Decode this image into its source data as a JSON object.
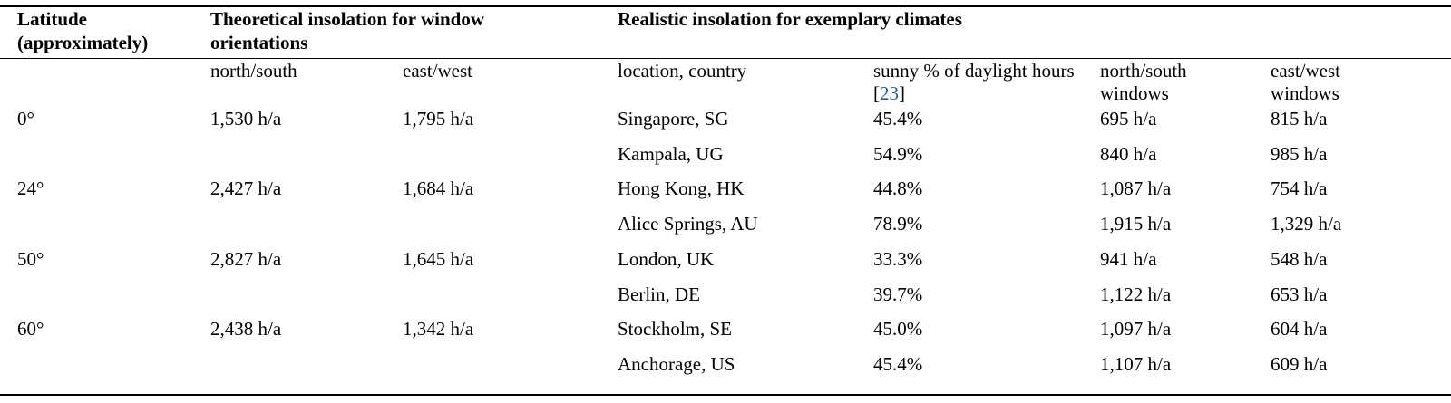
{
  "header": {
    "latitude": [
      "Latitude",
      "(approximately)"
    ],
    "theoretical": [
      "Theoretical insolation for window",
      "orientations"
    ],
    "realistic": "Realistic insolation for exemplary climates"
  },
  "subheader": {
    "north_south": "north/south",
    "east_west": "east/west",
    "location": "location, country",
    "sunny_pct": "sunny % of daylight hours",
    "sunny_pct_citation": "23",
    "ns_windows": [
      "north/south",
      "windows"
    ],
    "ew_windows": [
      "east/west",
      "windows"
    ]
  },
  "rows": [
    {
      "latitude": "0°",
      "theo_ns": "1,530 h/a",
      "theo_ew": "1,795 h/a",
      "location": "Singapore, SG",
      "sunny": "45.4%",
      "real_ns": "695 h/a",
      "real_ew": "815 h/a"
    },
    {
      "latitude": "",
      "theo_ns": "",
      "theo_ew": "",
      "location": "Kampala, UG",
      "sunny": "54.9%",
      "real_ns": "840 h/a",
      "real_ew": "985 h/a"
    },
    {
      "latitude": "24°",
      "theo_ns": "2,427 h/a",
      "theo_ew": "1,684 h/a",
      "location": "Hong Kong, HK",
      "sunny": "44.8%",
      "real_ns": "1,087 h/a",
      "real_ew": "754 h/a"
    },
    {
      "latitude": "",
      "theo_ns": "",
      "theo_ew": "",
      "location": "Alice Springs, AU",
      "sunny": "78.9%",
      "real_ns": "1,915 h/a",
      "real_ew": "1,329 h/a"
    },
    {
      "latitude": "50°",
      "theo_ns": "2,827 h/a",
      "theo_ew": "1,645 h/a",
      "location": "London, UK",
      "sunny": "33.3%",
      "real_ns": "941 h/a",
      "real_ew": "548 h/a"
    },
    {
      "latitude": "",
      "theo_ns": "",
      "theo_ew": "",
      "location": "Berlin, DE",
      "sunny": "39.7%",
      "real_ns": "1,122 h/a",
      "real_ew": "653 h/a"
    },
    {
      "latitude": "60°",
      "theo_ns": "2,438 h/a",
      "theo_ew": "1,342 h/a",
      "location": "Stockholm, SE",
      "sunny": "45.0%",
      "real_ns": "1,097 h/a",
      "real_ew": "604 h/a"
    },
    {
      "latitude": "",
      "theo_ns": "",
      "theo_ew": "",
      "location": "Anchorage, US",
      "sunny": "45.4%",
      "real_ns": "1,107 h/a",
      "real_ew": "609 h/a"
    }
  ]
}
